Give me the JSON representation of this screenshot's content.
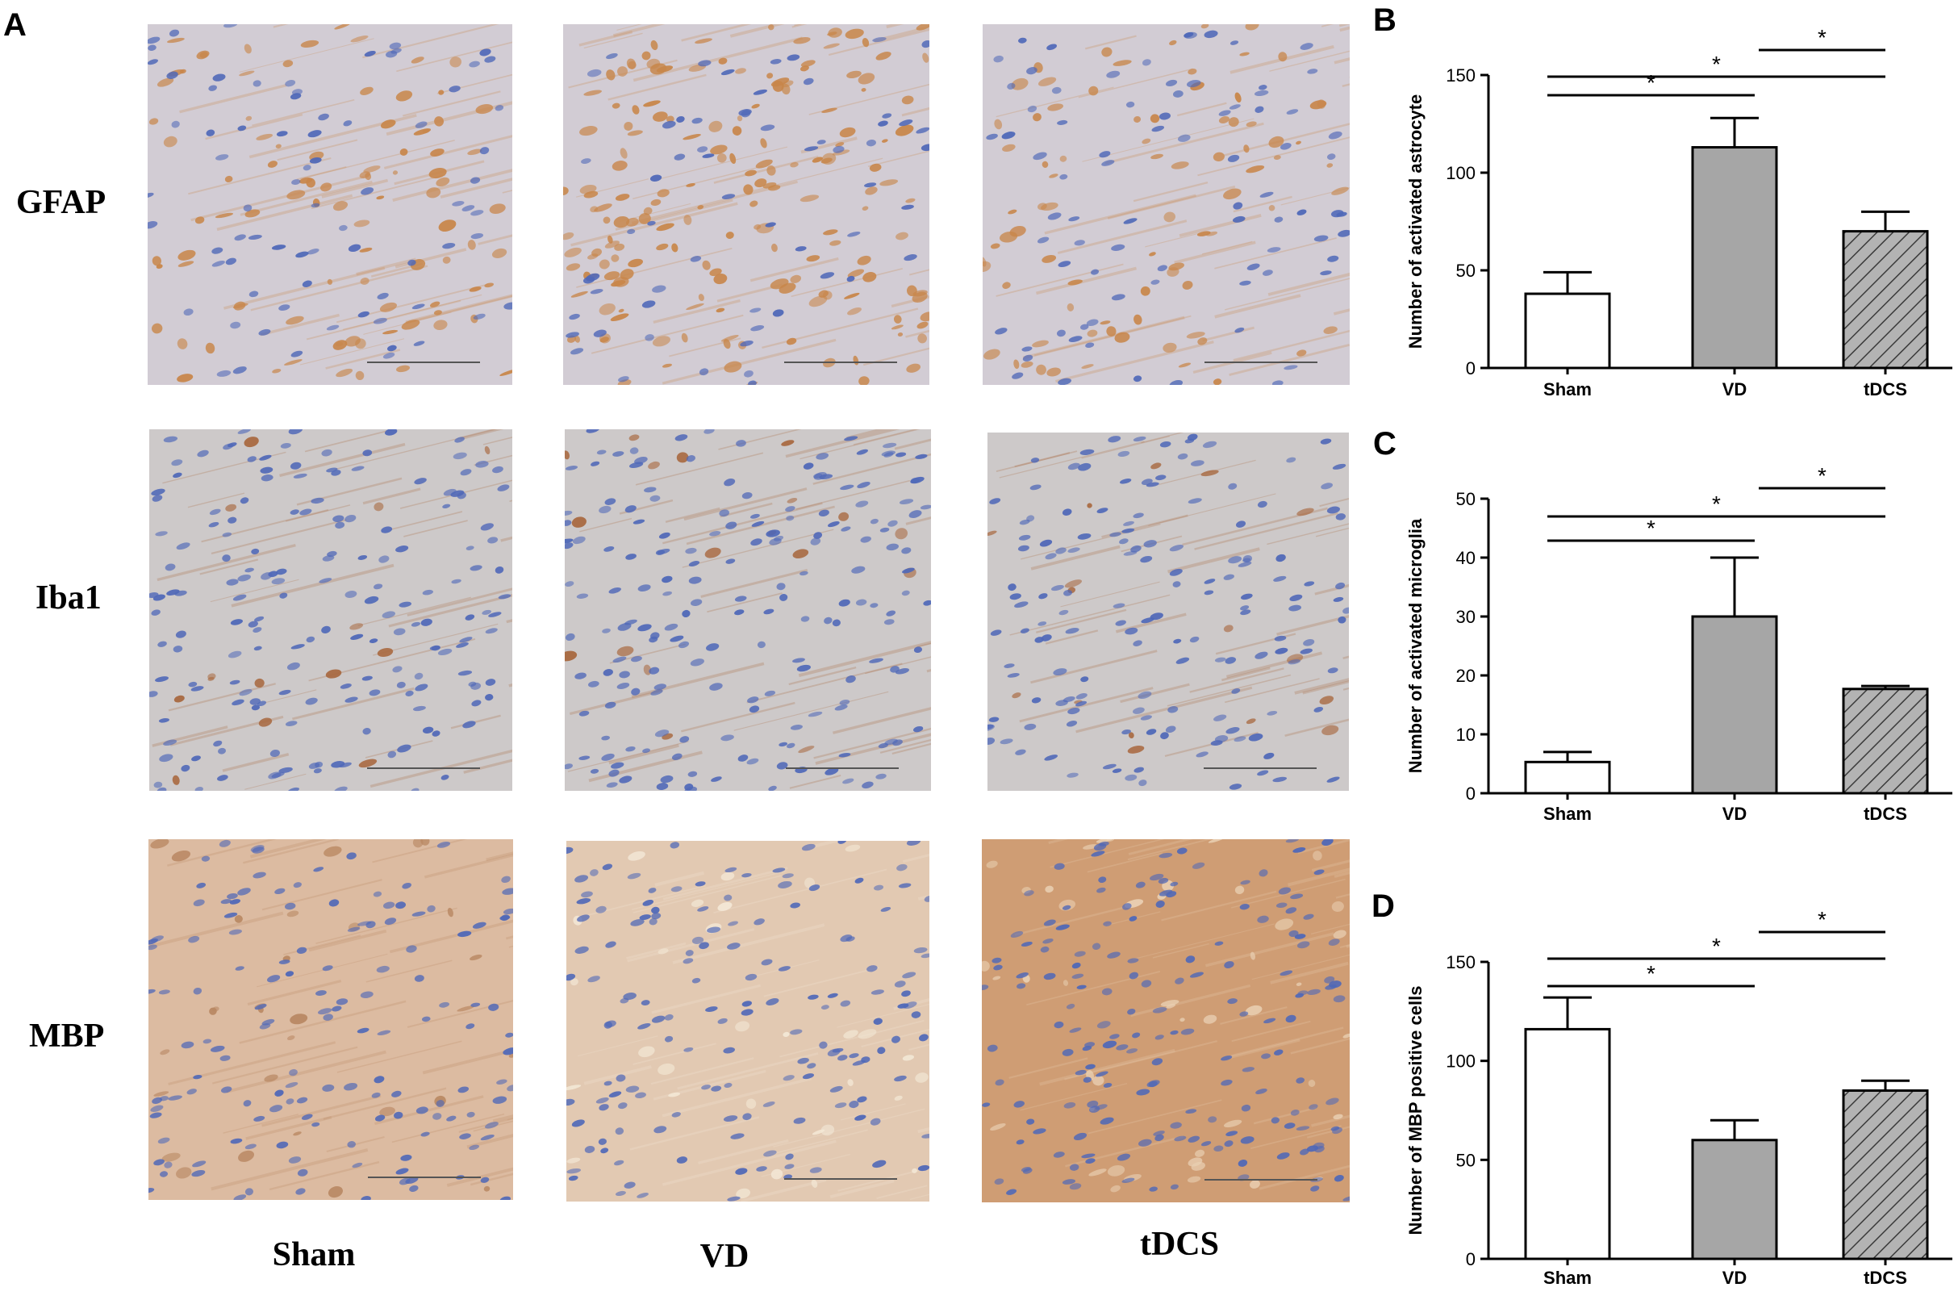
{
  "panel_a": {
    "letter": "A",
    "rows": [
      "GFAP",
      "Iba1",
      "MBP"
    ],
    "columns": [
      "Sham",
      "VD",
      "tDCS"
    ]
  },
  "colors": {
    "sham_fill": "#ffffff",
    "vd_fill": "#a6a6a6",
    "tdcs_fill": "#b0b0b0",
    "gfap_bg": "#d2ccd4",
    "gfap_stain": "#c8864a",
    "iba1_bg": "#cdc9c9",
    "iba1_stain": "#a8683f",
    "mbp_bg": "#dcbba1",
    "mbp_bg_tdcs": "#cf9d74",
    "nucleus": "#4f68b8"
  },
  "chart_data": [
    {
      "id": "B",
      "type": "bar",
      "letter": "B",
      "categories": [
        "Sham",
        "VD",
        "tDCS"
      ],
      "values": [
        38,
        113,
        70
      ],
      "errors": [
        11,
        15,
        10
      ],
      "ylabel": "Number of activated astrocyte",
      "ylim": [
        0,
        150
      ],
      "yticks": [
        0,
        50,
        100,
        150
      ],
      "fills": [
        "white",
        "gray",
        "hatched"
      ],
      "significance": [
        {
          "from": 0,
          "to": 1,
          "label": "*"
        },
        {
          "from": 0,
          "to": 2,
          "label": "*"
        },
        {
          "from": 1,
          "to": 2,
          "label": "*"
        }
      ]
    },
    {
      "id": "C",
      "type": "bar",
      "letter": "C",
      "categories": [
        "Sham",
        "VD",
        "tDCS"
      ],
      "values": [
        5.3,
        30,
        17.7
      ],
      "errors": [
        1.7,
        10,
        0.5
      ],
      "ylabel": "Number of activated microglia",
      "ylim": [
        0,
        50
      ],
      "yticks": [
        0,
        10,
        20,
        30,
        40,
        50
      ],
      "fills": [
        "white",
        "gray",
        "hatched"
      ],
      "significance": [
        {
          "from": 0,
          "to": 1,
          "label": "*"
        },
        {
          "from": 0,
          "to": 2,
          "label": "*"
        },
        {
          "from": 1,
          "to": 2,
          "label": "*"
        }
      ]
    },
    {
      "id": "D",
      "type": "bar",
      "letter": "D",
      "categories": [
        "Sham",
        "VD",
        "tDCS"
      ],
      "values": [
        116,
        60,
        85
      ],
      "errors": [
        16,
        10,
        5
      ],
      "ylabel": "Number of MBP positive cells",
      "ylim": [
        0,
        150
      ],
      "yticks": [
        0,
        50,
        100,
        150
      ],
      "fills": [
        "white",
        "gray",
        "hatched"
      ],
      "significance": [
        {
          "from": 0,
          "to": 1,
          "label": "*"
        },
        {
          "from": 0,
          "to": 2,
          "label": "*"
        },
        {
          "from": 1,
          "to": 2,
          "label": "*"
        }
      ]
    }
  ]
}
